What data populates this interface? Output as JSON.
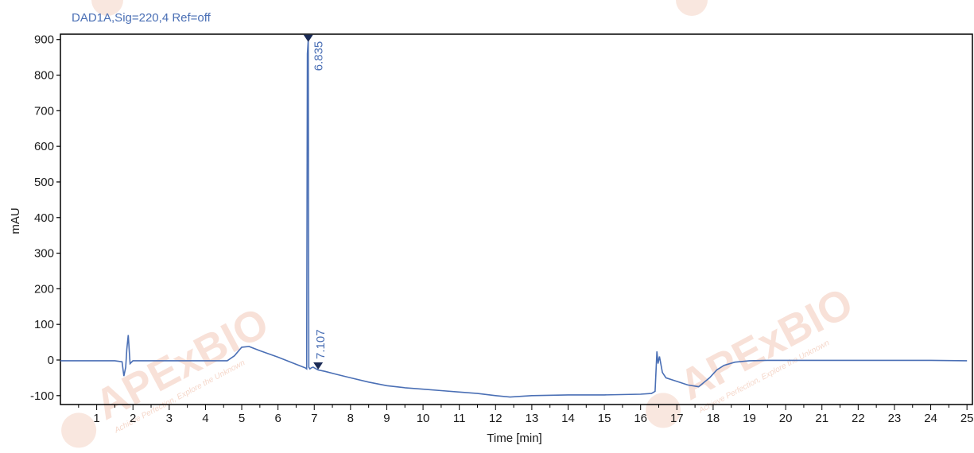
{
  "signal_title": "DAD1A,Sig=220,4  Ref=off",
  "watermark": {
    "logo_text": "APExBIO",
    "tagline": "Achieve Perfection, Explore the Unknown",
    "color": "#f2c9b8"
  },
  "colors": {
    "trace": "#4a6fb5",
    "axis": "#000000",
    "label": "#4a6fb5"
  },
  "chart_data": {
    "type": "line",
    "title": "DAD1A,Sig=220,4  Ref=off",
    "xlabel": "Time [min]",
    "ylabel": "mAU",
    "xlim": [
      0,
      25.15
    ],
    "ylim": [
      -125,
      915
    ],
    "x_ticks": [
      1,
      2,
      3,
      4,
      5,
      6,
      7,
      8,
      9,
      10,
      11,
      12,
      13,
      14,
      15,
      16,
      17,
      18,
      19,
      20,
      21,
      22,
      23,
      24,
      25
    ],
    "y_ticks": [
      -100,
      0,
      100,
      200,
      300,
      400,
      500,
      600,
      700,
      800,
      900
    ],
    "grid": false,
    "series": [
      {
        "x": [
          0,
          1.0,
          1.5,
          1.7,
          1.75,
          1.8,
          1.83,
          1.87,
          1.92,
          2.0,
          2.2,
          3.0,
          4.0,
          4.6,
          4.8,
          5.0,
          5.2,
          5.5,
          6.0,
          6.5,
          6.75,
          6.79,
          6.81,
          6.835,
          6.85,
          6.88,
          6.92,
          6.97,
          7.0,
          7.107,
          7.3,
          7.6,
          8.0,
          8.5,
          9.0,
          9.5,
          10.0,
          10.5,
          11.0,
          11.5,
          12.0,
          12.4,
          13.0,
          14.0,
          15.0,
          16.0,
          16.3,
          16.4,
          16.45,
          16.48,
          16.52,
          16.6,
          16.7,
          17.0,
          17.3,
          17.6,
          17.9,
          18.1,
          18.3,
          18.6,
          19.0,
          19.5,
          20.0,
          21.0,
          22.0,
          23.0,
          24.0,
          25.0
        ],
        "y": [
          -2,
          -2,
          -2,
          -5,
          -45,
          -20,
          30,
          70,
          -10,
          -2,
          -2,
          -2,
          -2,
          -2,
          12,
          36,
          38,
          26,
          8,
          -12,
          -22,
          -25,
          860,
          900,
          -20,
          -25,
          -22,
          -20,
          -22,
          -28,
          -32,
          -40,
          -50,
          -62,
          -72,
          -78,
          -82,
          -86,
          -90,
          -94,
          -100,
          -104,
          -100,
          -98,
          -98,
          -96,
          -94,
          -88,
          24,
          -10,
          10,
          -35,
          -50,
          -60,
          -70,
          -75,
          -50,
          -28,
          -15,
          -6,
          -2,
          -1,
          -1,
          -1,
          -1,
          -1,
          -1,
          -2
        ]
      }
    ],
    "peaks": [
      {
        "time": 6.835,
        "label": "6.835",
        "marker_y": 900
      },
      {
        "time": 7.107,
        "label": "7.107",
        "marker_y": -20
      }
    ]
  }
}
